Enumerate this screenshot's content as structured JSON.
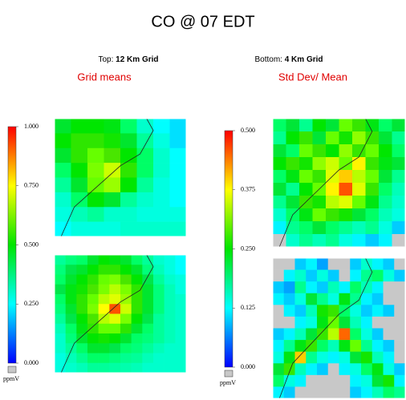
{
  "header": {
    "title": "CO @ 07 EDT",
    "top_label": {
      "prefix": "Top:",
      "emphasis": "12 Km Grid"
    },
    "bottom_label": {
      "prefix": "Bottom:",
      "emphasis": "4 Km Grid"
    }
  },
  "chart_data": [
    {
      "type": "heatmap",
      "title": "Grid means",
      "colorbar": {
        "lim": [
          0,
          1
        ],
        "unit": "ppmV",
        "ticks": [
          {
            "value": 1,
            "label": "1.000"
          },
          {
            "value": 0.75,
            "label": "0.750"
          },
          {
            "value": 0.5,
            "label": "0.500"
          },
          {
            "value": 0.25,
            "label": "0.250"
          },
          {
            "value": 0,
            "label": "0.000"
          }
        ]
      },
      "panels": [
        {
          "values": [
            [
              0.45,
              0.5,
              0.5,
              0.48,
              0.4,
              0.3,
              0.25,
              0.22
            ],
            [
              0.5,
              0.55,
              0.55,
              0.52,
              0.45,
              0.35,
              0.28,
              0.22
            ],
            [
              0.45,
              0.55,
              0.6,
              0.58,
              0.5,
              0.4,
              0.3,
              0.25
            ],
            [
              0.4,
              0.5,
              0.62,
              0.7,
              0.55,
              0.4,
              0.3,
              0.25
            ],
            [
              0.35,
              0.45,
              0.6,
              0.65,
              0.5,
              0.35,
              0.28,
              0.25
            ],
            [
              0.3,
              0.4,
              0.5,
              0.45,
              0.35,
              0.3,
              0.28,
              0.25
            ],
            [
              0.28,
              0.32,
              0.35,
              0.3,
              0.3,
              0.28,
              0.28,
              0.28
            ],
            [
              0.25,
              0.28,
              0.28,
              0.28,
              0.3,
              0.3,
              0.3,
              0.3
            ]
          ]
        },
        {
          "values": [
            [
              0.35,
              0.38,
              0.4,
              0.45,
              0.5,
              0.48,
              0.45,
              0.4,
              0.35,
              0.3,
              0.28,
              0.25
            ],
            [
              0.38,
              0.42,
              0.45,
              0.5,
              0.55,
              0.55,
              0.5,
              0.45,
              0.38,
              0.32,
              0.28,
              0.25
            ],
            [
              0.4,
              0.45,
              0.5,
              0.55,
              0.6,
              0.62,
              0.58,
              0.5,
              0.42,
              0.35,
              0.3,
              0.28
            ],
            [
              0.42,
              0.48,
              0.52,
              0.58,
              0.62,
              0.68,
              0.62,
              0.55,
              0.45,
              0.38,
              0.32,
              0.28
            ],
            [
              0.4,
              0.48,
              0.55,
              0.6,
              0.68,
              0.72,
              0.65,
              0.55,
              0.45,
              0.38,
              0.32,
              0.3
            ],
            [
              0.38,
              0.45,
              0.55,
              0.62,
              0.75,
              0.92,
              0.7,
              0.55,
              0.45,
              0.38,
              0.32,
              0.3
            ],
            [
              0.35,
              0.42,
              0.5,
              0.58,
              0.68,
              0.72,
              0.62,
              0.5,
              0.42,
              0.35,
              0.32,
              0.3
            ],
            [
              0.32,
              0.4,
              0.48,
              0.55,
              0.6,
              0.6,
              0.55,
              0.45,
              0.4,
              0.35,
              0.32,
              0.3
            ],
            [
              0.3,
              0.38,
              0.45,
              0.5,
              0.52,
              0.5,
              0.45,
              0.4,
              0.38,
              0.35,
              0.32,
              0.3
            ],
            [
              0.3,
              0.35,
              0.4,
              0.45,
              0.45,
              0.42,
              0.4,
              0.38,
              0.35,
              0.32,
              0.3,
              0.3
            ],
            [
              0.28,
              0.32,
              0.36,
              0.4,
              0.4,
              0.38,
              0.36,
              0.35,
              0.32,
              0.3,
              0.3,
              0.3
            ],
            [
              0.28,
              0.3,
              0.32,
              0.35,
              0.35,
              0.34,
              0.33,
              0.32,
              0.3,
              0.3,
              0.3,
              0.3
            ]
          ]
        }
      ]
    },
    {
      "type": "heatmap",
      "title": "Std Dev/ Mean",
      "colorbar": {
        "lim": [
          0,
          0.5
        ],
        "unit": "ppmV",
        "ticks": [
          {
            "value": 0.5,
            "label": "0.500"
          },
          {
            "value": 0.375,
            "label": "0.375"
          },
          {
            "value": 0.25,
            "label": "0.250"
          },
          {
            "value": 0.125,
            "label": "0.125"
          },
          {
            "value": 0,
            "label": "0.000"
          }
        ]
      },
      "panels": [
        {
          "values": [
            [
              0.2,
              0.22,
              0.18,
              0.25,
              0.22,
              0.3,
              0.28,
              0.24,
              0.2,
              0.22
            ],
            [
              0.18,
              0.25,
              0.28,
              0.22,
              0.3,
              0.26,
              0.32,
              0.28,
              0.22,
              0.18
            ],
            [
              0.22,
              0.2,
              0.3,
              0.28,
              0.25,
              0.32,
              0.28,
              0.3,
              0.25,
              0.2
            ],
            [
              0.25,
              0.28,
              0.26,
              0.32,
              0.35,
              0.3,
              0.38,
              0.28,
              0.24,
              0.22
            ],
            [
              0.2,
              0.24,
              0.3,
              0.28,
              0.36,
              0.4,
              0.34,
              0.3,
              0.22,
              0.18
            ],
            [
              0.22,
              0.18,
              0.25,
              0.3,
              0.38,
              0.46,
              0.36,
              0.28,
              0.2,
              0.16
            ],
            [
              0.18,
              0.22,
              0.28,
              0.26,
              0.34,
              0.36,
              0.3,
              0.24,
              0.18,
              0.15
            ],
            [
              0.15,
              0.2,
              0.24,
              0.3,
              0.28,
              0.26,
              0.22,
              0.2,
              0.16,
              0.14
            ],
            [
              0.12,
              0.18,
              0.2,
              0.22,
              0.2,
              0.18,
              0.16,
              0.18,
              0.14,
              0.1
            ],
            [
              null,
              0.15,
              0.18,
              0.16,
              0.18,
              0.14,
              0.12,
              0.1,
              0.12,
              null
            ]
          ]
        },
        {
          "values": [
            [
              null,
              null,
              0.1,
              0.12,
              0.08,
              null,
              null,
              0.1,
              0.15,
              0.12,
              0.1,
              null
            ],
            [
              null,
              0.12,
              0.15,
              0.1,
              0.14,
              0.1,
              null,
              0.12,
              0.18,
              0.2,
              0.14,
              0.1
            ],
            [
              0.1,
              0.08,
              0.18,
              0.12,
              0.1,
              0.16,
              0.12,
              0.2,
              0.16,
              0.12,
              null,
              null
            ],
            [
              0.12,
              0.1,
              0.14,
              0.22,
              0.18,
              0.14,
              0.24,
              0.18,
              0.12,
              0.1,
              null,
              null
            ],
            [
              null,
              0.12,
              0.1,
              0.16,
              0.26,
              0.28,
              0.2,
              0.14,
              0.1,
              0.12,
              0.1,
              null
            ],
            [
              null,
              null,
              0.12,
              0.14,
              0.24,
              0.3,
              0.22,
              0.16,
              0.12,
              null,
              null,
              null
            ],
            [
              0.1,
              0.12,
              0.16,
              0.22,
              0.28,
              0.34,
              0.45,
              0.2,
              0.14,
              0.1,
              null,
              null
            ],
            [
              0.12,
              0.18,
              0.24,
              0.28,
              0.2,
              0.16,
              0.24,
              0.3,
              0.18,
              0.12,
              0.1,
              null
            ],
            [
              0.14,
              0.24,
              0.4,
              0.18,
              0.14,
              0.12,
              0.14,
              0.22,
              0.26,
              0.16,
              0.12,
              null
            ],
            [
              0.22,
              0.28,
              0.16,
              0.12,
              0.1,
              null,
              0.12,
              0.14,
              0.2,
              0.24,
              0.14,
              0.1
            ],
            [
              0.2,
              0.14,
              0.12,
              null,
              null,
              null,
              null,
              0.12,
              0.14,
              0.22,
              0.26,
              0.12
            ],
            [
              0.12,
              0.1,
              null,
              null,
              null,
              null,
              null,
              0.1,
              0.12,
              0.16,
              0.2,
              0.18
            ]
          ]
        }
      ]
    }
  ]
}
